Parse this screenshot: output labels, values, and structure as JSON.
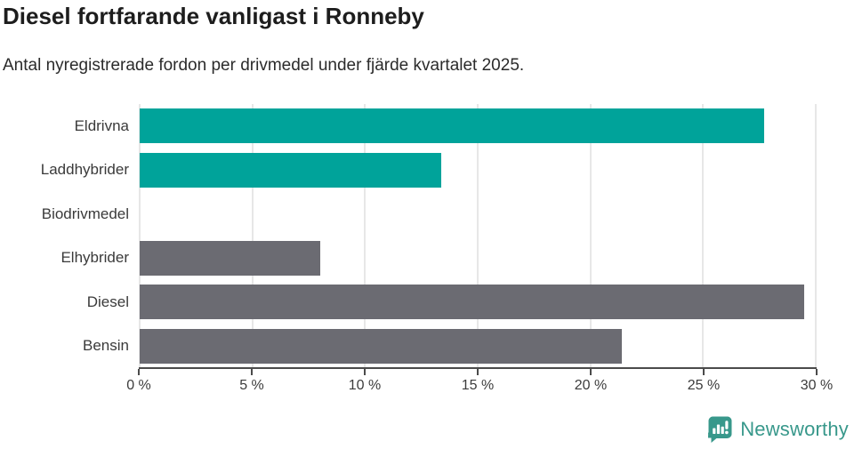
{
  "header": {
    "title": "Diesel fortfarande vanligast i Ronneby",
    "subtitle": "Antal nyregistrerade fordon per drivmedel under fjärde kvartalet 2025."
  },
  "chart_data": {
    "type": "bar",
    "orientation": "horizontal",
    "title": "Diesel fortfarande vanligast i Ronneby",
    "subtitle": "Antal nyregistrerade fordon per drivmedel under fjärde kvartalet 2025.",
    "categories": [
      "Eldrivna",
      "Laddhybrider",
      "Biodrivmedel",
      "Elhybrider",
      "Diesel",
      "Bensin"
    ],
    "values": [
      27.7,
      13.4,
      0,
      8.0,
      29.5,
      21.4
    ],
    "bar_colors": [
      "#00a39a",
      "#00a39a",
      "#6b6b72",
      "#6b6b72",
      "#6b6b72",
      "#6b6b72"
    ],
    "unit": "%",
    "xlabel": "",
    "ylabel": "",
    "xlim": [
      0,
      30
    ],
    "x_ticks": [
      0,
      5,
      10,
      15,
      20,
      25,
      30
    ],
    "x_tick_labels": [
      "0 %",
      "5 %",
      "10 %",
      "15 %",
      "20 %",
      "25 %",
      "30 %"
    ],
    "grid": "vertical-gridlines-on",
    "legend": "none"
  },
  "footer": {
    "brand": "Newsworthy"
  },
  "colors": {
    "accent_teal": "#00a39a",
    "neutral_gray": "#6b6b72",
    "logo_teal": "#38988b",
    "gridline": "#e7e7e7",
    "axis": "#4b4b4b"
  },
  "icons": {
    "logo_icon": "newsworthy-chart-speech-bubble-icon"
  }
}
